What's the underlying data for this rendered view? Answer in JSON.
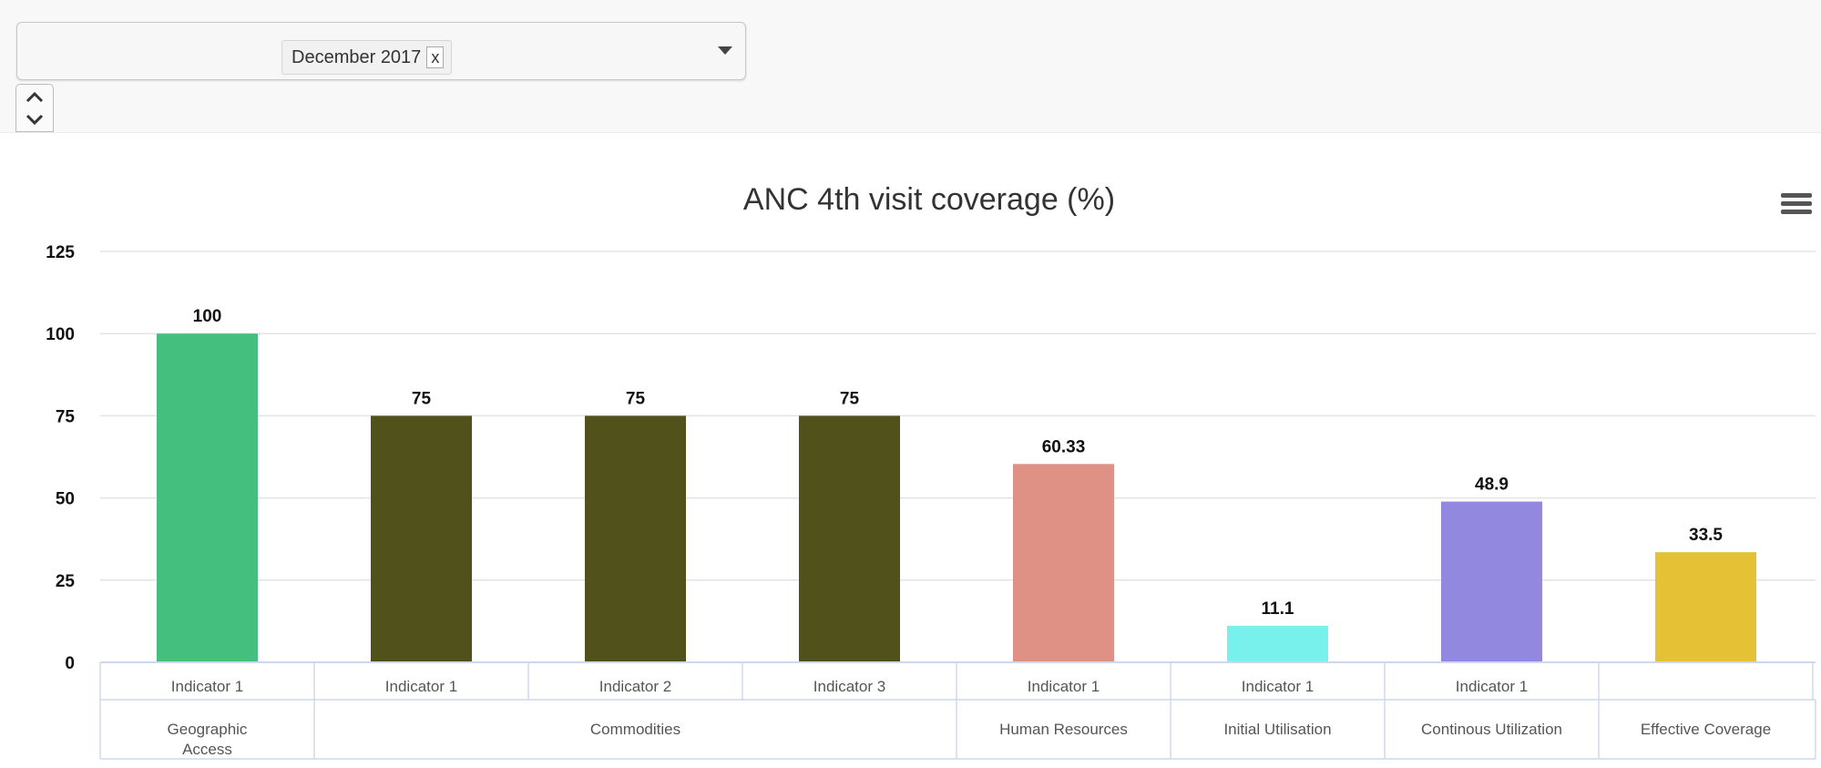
{
  "filter": {
    "selected": "December 2017",
    "remove_label": "x"
  },
  "chart_data": {
    "type": "bar",
    "title": "ANC 4th visit coverage (%)",
    "ylim": [
      0,
      125
    ],
    "yticks": [
      0,
      25,
      50,
      75,
      100,
      125
    ],
    "grid": true,
    "categories": [
      "Indicator 1",
      "Indicator 1",
      "Indicator 2",
      "Indicator 3",
      "Indicator 1",
      "Indicator 1",
      "Indicator 1",
      ""
    ],
    "groups": [
      {
        "label": "Geographic Access",
        "lines": [
          "Geographic",
          "Access"
        ],
        "span": 1
      },
      {
        "label": "Commodities",
        "lines": [
          "Commodities"
        ],
        "span": 3
      },
      {
        "label": "Human Resources",
        "lines": [
          "Human Resources"
        ],
        "span": 1
      },
      {
        "label": "Initial Utilisation",
        "lines": [
          "Initial Utilisation"
        ],
        "span": 1
      },
      {
        "label": "Continous Utilization",
        "lines": [
          "Continous Utilization"
        ],
        "span": 1
      },
      {
        "label": "Effective Coverage",
        "lines": [
          "Effective Coverage"
        ],
        "span": 1
      }
    ],
    "values": [
      100,
      75,
      75,
      75,
      60.33,
      11.1,
      48.9,
      33.5
    ],
    "data_labels": [
      "100",
      "75",
      "75",
      "75",
      "60.33",
      "11.1",
      "48.9",
      "33.5"
    ],
    "colors": [
      "#45bf7d",
      "#51511c",
      "#51511c",
      "#51511c",
      "#df9186",
      "#78f0ec",
      "#9288df",
      "#e4c135"
    ]
  }
}
